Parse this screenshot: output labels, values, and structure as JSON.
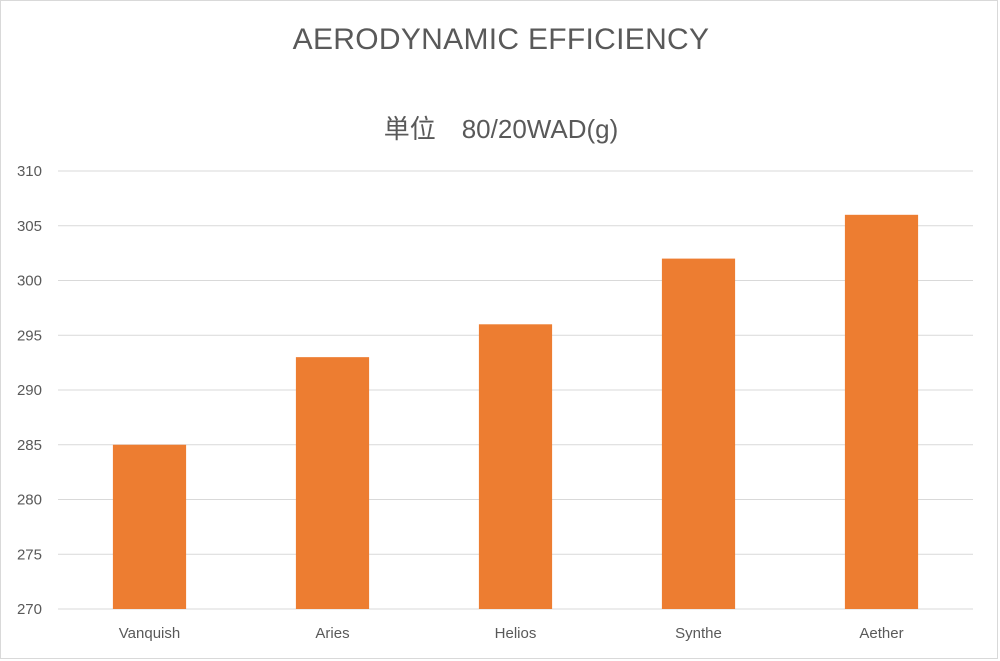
{
  "chart_data": {
    "type": "bar",
    "title": "AERODYNAMIC EFFICIENCY",
    "subtitle": "単位　80/20WAD(g)",
    "categories": [
      "Vanquish",
      "Aries",
      "Helios",
      "Synthe",
      "Aether"
    ],
    "series": [
      {
        "values": [
          285,
          293,
          296,
          302,
          306
        ]
      }
    ],
    "ylim": [
      270,
      310
    ],
    "yticks": [
      270,
      275,
      280,
      285,
      290,
      295,
      300,
      305,
      310
    ],
    "grid": true,
    "legend": "none",
    "bar_color": "#ED7D31",
    "grid_color": "#D9D9D9",
    "text_color": "#595959"
  }
}
